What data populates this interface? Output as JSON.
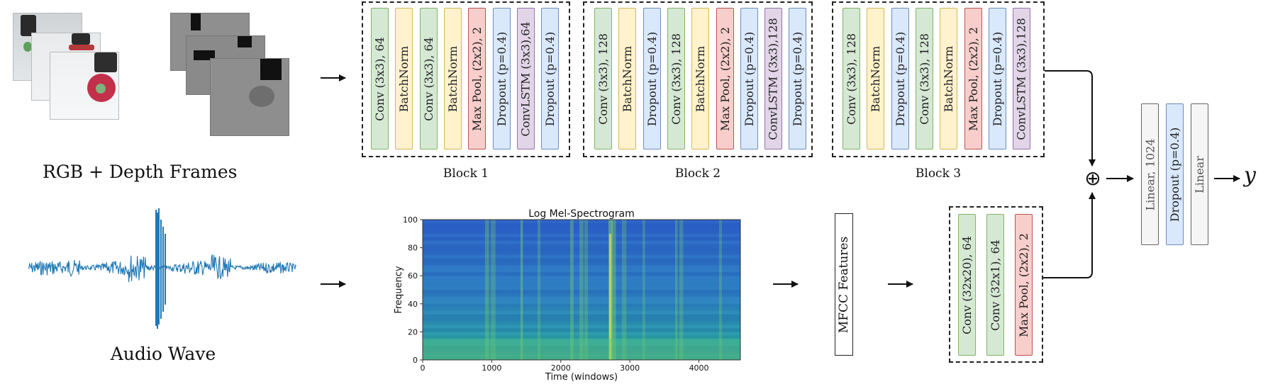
{
  "inputs": {
    "frames_caption": "RGB + Depth Frames",
    "audio_caption": "Audio Wave"
  },
  "blocks": [
    {
      "label": "Block 1",
      "layers": [
        {
          "text": "Conv (3x3), 64",
          "kind": "conv"
        },
        {
          "text": "BatchNorm",
          "kind": "bn"
        },
        {
          "text": "Conv (3x3), 64",
          "kind": "conv"
        },
        {
          "text": "BatchNorm",
          "kind": "bn"
        },
        {
          "text": "Max Pool, (2x2), 2",
          "kind": "pool"
        },
        {
          "text": "Dropout (p=0.4)",
          "kind": "drop"
        },
        {
          "text": "ConvLSTM (3x3),64",
          "kind": "lstm"
        },
        {
          "text": "Dropout (p=0.4)",
          "kind": "drop"
        }
      ]
    },
    {
      "label": "Block 2",
      "layers": [
        {
          "text": "Conv (3x3), 128",
          "kind": "conv"
        },
        {
          "text": "BatchNorm",
          "kind": "bn"
        },
        {
          "text": "Dropout (p=0.4)",
          "kind": "drop"
        },
        {
          "text": "Conv (3x3), 128",
          "kind": "conv"
        },
        {
          "text": "BatchNorm",
          "kind": "bn"
        },
        {
          "text": "Max Pool, (2x2), 2",
          "kind": "pool"
        },
        {
          "text": "Dropout (p=0.4)",
          "kind": "drop"
        },
        {
          "text": "ConvLSTM (3x3),128",
          "kind": "lstm"
        },
        {
          "text": "Dropout (p=0.4)",
          "kind": "drop"
        }
      ]
    },
    {
      "label": "Block 3",
      "layers": [
        {
          "text": "Conv (3x3), 128",
          "kind": "conv"
        },
        {
          "text": "BatchNorm",
          "kind": "bn"
        },
        {
          "text": "Dropout (p=0.4)",
          "kind": "drop"
        },
        {
          "text": "Conv (3x3), 128",
          "kind": "conv"
        },
        {
          "text": "BatchNorm",
          "kind": "bn"
        },
        {
          "text": "Max Pool, (2x2), 2",
          "kind": "pool"
        },
        {
          "text": "Dropout (p=0.4)",
          "kind": "drop"
        },
        {
          "text": "ConvLSTM (3x3),128",
          "kind": "lstm"
        }
      ]
    }
  ],
  "spectrogram": {
    "title": "Log Mel-Spectrogram",
    "xlabel": "Time (windows)",
    "ylabel": "Frequency",
    "xticks": [
      "0",
      "1000",
      "2000",
      "3000",
      "4000"
    ],
    "yticks": [
      "0",
      "20",
      "40",
      "60",
      "80",
      "100"
    ]
  },
  "mfcc_label": "MFCC Features",
  "audio_block": {
    "layers": [
      {
        "text": "Conv (32x20), 64",
        "kind": "conv"
      },
      {
        "text": "Conv (32x1), 64",
        "kind": "conv"
      },
      {
        "text": "Max Pool, (2x2), 2",
        "kind": "pool"
      }
    ]
  },
  "fusion": {
    "symbol": "⊕",
    "layers": [
      {
        "text": "Linear, 1024",
        "kind": "lin"
      },
      {
        "text": "Dropout (p=0.4)",
        "kind": "drop"
      },
      {
        "text": "Linear",
        "kind": "lin"
      }
    ],
    "output": "y"
  },
  "colors": {
    "conv": "#d5e8d4",
    "bn": "#fff2cc",
    "dropout": "#dae8fc",
    "pool": "#f8cecc",
    "convlstm": "#e1d5e7",
    "linear": "#f5f5f5",
    "waveform": "#1f77b4"
  }
}
